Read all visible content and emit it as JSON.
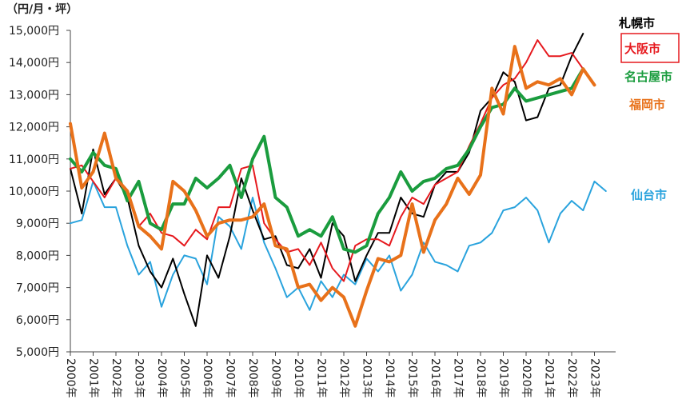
{
  "chart_data": {
    "type": "line",
    "unit_label": "（円/月・坪）",
    "ylim": [
      5000,
      15000
    ],
    "y_ticks": [
      "5,000円",
      "6,000円",
      "7,000円",
      "8,000円",
      "9,000円",
      "10,000円",
      "11,000円",
      "12,000円",
      "13,000円",
      "14,000円",
      "15,000円"
    ],
    "y_tick_values": [
      5000,
      6000,
      7000,
      8000,
      9000,
      10000,
      11000,
      12000,
      13000,
      14000,
      15000
    ],
    "x_labels": [
      "2000年",
      "2001年",
      "2002年",
      "2003年",
      "2004年",
      "2005年",
      "2006年",
      "2007年",
      "2008年",
      "2009年",
      "2010年",
      "2011年",
      "2012年",
      "2013年",
      "2014年",
      "2015年",
      "2016年",
      "2017年",
      "2018年",
      "2019年",
      "2020年",
      "2021年",
      "2022年",
      "2023年"
    ],
    "points_per_year": 2,
    "series": [
      {
        "name": "札幌市",
        "color": "#000000",
        "width": 2,
        "legend_boxed": false,
        "values": [
          10700,
          9300,
          11300,
          9900,
          10400,
          9800,
          8300,
          7500,
          7000,
          7900,
          6800,
          5800,
          8000,
          7300,
          8600,
          10400,
          9400,
          8500,
          8600,
          7700,
          7600,
          8200,
          7300,
          9000,
          8600,
          7200,
          8000,
          8700,
          8700,
          9800,
          9300,
          9200,
          10200,
          10600,
          10600,
          11200,
          12500,
          12900,
          13700,
          13400,
          12200,
          12300,
          13200,
          13300,
          14200,
          14900
        ]
      },
      {
        "name": "大阪市",
        "color": "#e6191e",
        "width": 2,
        "legend_boxed": true,
        "values": [
          10700,
          10800,
          10300,
          9800,
          10400,
          10000,
          8900,
          9300,
          8700,
          8600,
          8300,
          8800,
          8500,
          9500,
          9500,
          10700,
          10800,
          9000,
          8500,
          8100,
          8200,
          7700,
          8400,
          7600,
          7200,
          8300,
          8500,
          8500,
          8300,
          9200,
          9800,
          9600,
          10200,
          10400,
          10600,
          11400,
          12100,
          12900,
          13300,
          13500,
          14000,
          14700,
          14200,
          14200,
          14300,
          13800
        ]
      },
      {
        "name": "名古屋市",
        "color": "#1a9c3e",
        "width": 4,
        "legend_boxed": false,
        "values": [
          11000,
          10600,
          11200,
          10800,
          10700,
          9700,
          10300,
          9000,
          8800,
          9600,
          9600,
          10400,
          10100,
          10400,
          10800,
          9800,
          11000,
          11700,
          9800,
          9500,
          8600,
          8800,
          8600,
          9200,
          8200,
          8100,
          8300,
          9300,
          9800,
          10600,
          10000,
          10300,
          10400,
          10700,
          10800,
          11300,
          12000,
          12600,
          12700,
          13200,
          12800,
          12900,
          13000,
          13100,
          13200,
          13800
        ]
      },
      {
        "name": "福岡市",
        "color": "#e8711a",
        "width": 4,
        "legend_boxed": false,
        "values": [
          12100,
          10100,
          10600,
          11800,
          10400,
          10000,
          8900,
          8600,
          8200,
          10300,
          10000,
          9400,
          8600,
          9000,
          9100,
          9100,
          9200,
          9600,
          8300,
          8200,
          7000,
          7100,
          6600,
          7000,
          6700,
          5800,
          6900,
          7900,
          7800,
          8000,
          9600,
          8100,
          9100,
          9600,
          10400,
          9900,
          10500,
          13200,
          12400,
          14500,
          13200,
          13400,
          13300,
          13500,
          13000,
          13800,
          13300
        ]
      },
      {
        "name": "仙台市",
        "color": "#2aa3dd",
        "width": 2,
        "legend_boxed": false,
        "values": [
          9000,
          9100,
          10300,
          9500,
          9500,
          8300,
          7400,
          7800,
          6400,
          7400,
          8000,
          7900,
          7100,
          9200,
          8900,
          8200,
          9800,
          8400,
          7600,
          6700,
          7000,
          6300,
          7200,
          6700,
          7400,
          7100,
          7900,
          7500,
          8000,
          6900,
          7400,
          8400,
          7800,
          7700,
          7500,
          8300,
          8400,
          8700,
          9400,
          9500,
          9800,
          9400,
          8400,
          9300,
          9700,
          9400,
          10300,
          10000
        ]
      }
    ]
  }
}
